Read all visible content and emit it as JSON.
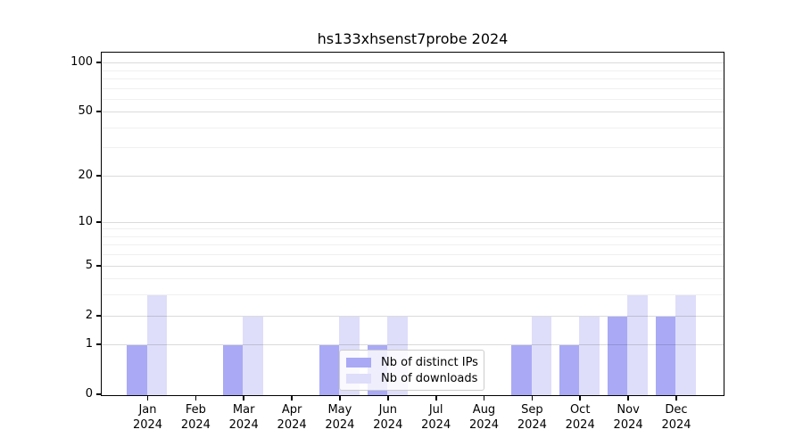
{
  "title": "hs133xhsenst7probe 2024",
  "chart_data": {
    "type": "bar",
    "title": "hs133xhsenst7probe 2024",
    "categories": [
      "Jan 2024",
      "Feb 2024",
      "Mar 2024",
      "Apr 2024",
      "May 2024",
      "Jun 2024",
      "Jul 2024",
      "Aug 2024",
      "Sep 2024",
      "Oct 2024",
      "Nov 2024",
      "Dec 2024"
    ],
    "series": [
      {
        "name": "Nb of distinct IPs",
        "color": "#a9a9f6",
        "values": [
          1,
          0,
          1,
          0,
          1,
          1,
          0,
          0,
          1,
          1,
          2,
          2
        ]
      },
      {
        "name": "Nb of downloads",
        "color": "#dedefa",
        "values": [
          3,
          0,
          2,
          0,
          2,
          2,
          0,
          0,
          2,
          2,
          3,
          3
        ]
      }
    ],
    "xlabel": "",
    "ylabel": "",
    "yscale": "log1p",
    "ylim": [
      0,
      114
    ],
    "yticks": [
      0,
      1,
      2,
      5,
      10,
      20,
      50,
      100
    ],
    "yticks_minor": [
      3,
      4,
      6,
      7,
      8,
      9,
      30,
      40,
      60,
      70,
      80,
      90
    ],
    "grid": "horizontal",
    "legend_position": "inside-bottom-center",
    "bar_group": "paired-side-by-side"
  },
  "colors": {
    "axes": "#000000",
    "grid_major": "#d9d9d9",
    "grid_minor": "#efefef",
    "background": "#ffffff"
  }
}
